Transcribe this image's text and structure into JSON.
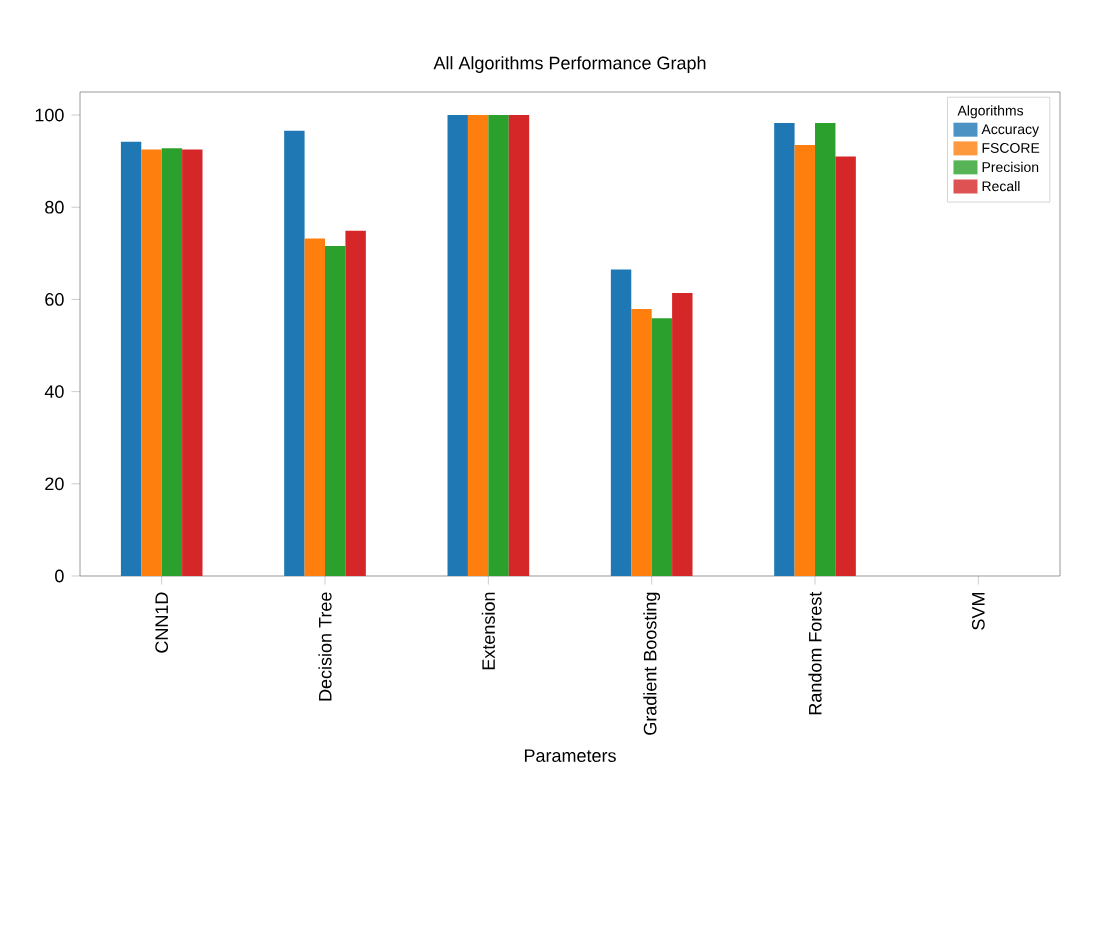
{
  "chart_data": {
    "type": "bar",
    "title": "All Algorithms Performance Graph",
    "xlabel": "Parameters",
    "legend_title": "Algorithms",
    "categories": [
      "CNN1D",
      "Decision Tree",
      "Extension",
      "Gradient Boosting",
      "Random Forest",
      "SVM"
    ],
    "series": [
      {
        "name": "Accuracy",
        "color": "#1f77b4",
        "values": [
          94.2,
          96.6,
          100,
          66.5,
          98.3,
          null
        ]
      },
      {
        "name": "FSCORE",
        "color": "#ff7f0e",
        "values": [
          92.5,
          73.2,
          100,
          57.9,
          93.5,
          null
        ]
      },
      {
        "name": "Precision",
        "color": "#2ca02c",
        "values": [
          92.8,
          71.6,
          100,
          55.9,
          98.3,
          null
        ]
      },
      {
        "name": "Recall",
        "color": "#d62728",
        "values": [
          92.5,
          74.9,
          100,
          61.4,
          91.0,
          null
        ]
      }
    ],
    "ylim": [
      0,
      105
    ],
    "yticks": [
      0,
      20,
      40,
      60,
      80,
      100
    ],
    "legend": "top right"
  }
}
